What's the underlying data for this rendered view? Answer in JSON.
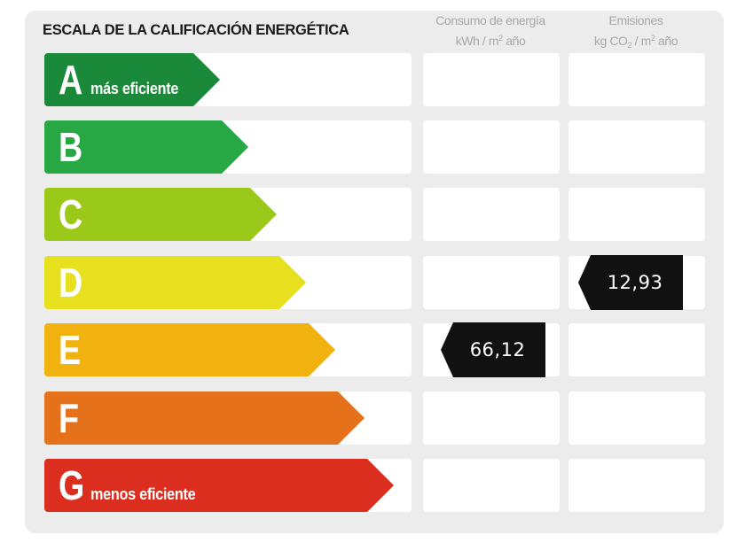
{
  "title": "ESCALA DE LA CALIFICACIÓN ENERGÉTICA",
  "columns": {
    "consumo": {
      "line1": "Consumo de energía",
      "line2_pre": "kWh / m",
      "line2_sup": "2",
      "line2_post": " año"
    },
    "emisiones": {
      "line1": "Emisiones",
      "line2_pre": "kg CO",
      "line2_sub": "2",
      "line2_mid": " / m",
      "line2_sup": "2",
      "line2_post": " año"
    }
  },
  "classes": [
    {
      "letter": "A",
      "note": "más eficiente",
      "color": "#1a8a3a"
    },
    {
      "letter": "B",
      "note": "",
      "color": "#27a844"
    },
    {
      "letter": "C",
      "note": "",
      "color": "#9bc91a"
    },
    {
      "letter": "D",
      "note": "",
      "color": "#e6e01f"
    },
    {
      "letter": "E",
      "note": "",
      "color": "#f1b10e"
    },
    {
      "letter": "F",
      "note": "",
      "color": "#e5721a"
    },
    {
      "letter": "G",
      "note": "menos eficiente",
      "color": "#dc2e1f"
    }
  ],
  "ratings": {
    "consumo": {
      "class": "E",
      "value": "66,12"
    },
    "emisiones": {
      "class": "D",
      "value": "12,93"
    }
  }
}
